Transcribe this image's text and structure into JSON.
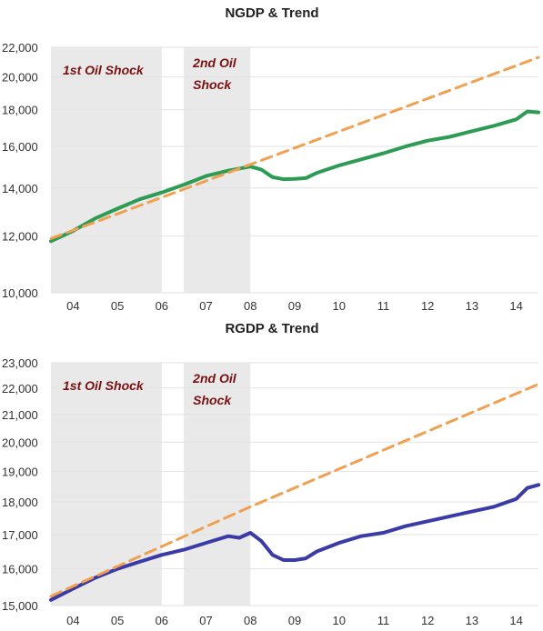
{
  "chart_data": [
    {
      "type": "line",
      "title": "NGDP & Trend",
      "y_scale": "log",
      "ylim": [
        10000,
        22000
      ],
      "yticks": [
        10000,
        12000,
        14000,
        16000,
        18000,
        20000,
        22000
      ],
      "ytick_labels": [
        "10,000",
        "12,000",
        "14,000",
        "16,000",
        "18,000",
        "20,000",
        "22,000"
      ],
      "xlim": [
        2003.5,
        2014.5
      ],
      "xticks": [
        2004,
        2005,
        2006,
        2007,
        2008,
        2009,
        2010,
        2011,
        2012,
        2013,
        2014
      ],
      "xtick_labels": [
        "04",
        "05",
        "06",
        "07",
        "08",
        "09",
        "10",
        "11",
        "12",
        "13",
        "14"
      ],
      "shaded_regions": [
        {
          "x0": 2003.5,
          "x1": 2006.0,
          "label_lines": [
            "1st Oil Shock"
          ]
        },
        {
          "x0": 2006.5,
          "x1": 2008.0,
          "label_lines": [
            "2nd Oil",
            "Shock"
          ]
        }
      ],
      "series": [
        {
          "style": "solid",
          "color": "#2e9b55",
          "x": [
            2003.5,
            2004.0,
            2004.5,
            2005.0,
            2005.5,
            2006.0,
            2006.5,
            2007.0,
            2007.5,
            2008.0,
            2008.25,
            2008.5,
            2008.75,
            2009.0,
            2009.25,
            2009.5,
            2010.0,
            2010.5,
            2011.0,
            2011.5,
            2012.0,
            2012.5,
            2013.0,
            2013.5,
            2014.0,
            2014.25,
            2014.5
          ],
          "values": [
            11800,
            12200,
            12700,
            13100,
            13500,
            13800,
            14150,
            14550,
            14800,
            15000,
            14850,
            14500,
            14400,
            14420,
            14450,
            14700,
            15050,
            15350,
            15650,
            16000,
            16300,
            16500,
            16800,
            17100,
            17450,
            17900,
            17850
          ]
        },
        {
          "style": "dashed",
          "color": "#f0a050",
          "x": [
            2003.5,
            2014.5
          ],
          "values": [
            11900,
            21300
          ]
        }
      ]
    },
    {
      "type": "line",
      "title": "RGDP & Trend",
      "y_scale": "log",
      "ylim": [
        15000,
        23000
      ],
      "yticks": [
        15000,
        16000,
        17000,
        18000,
        19000,
        20000,
        21000,
        22000,
        23000
      ],
      "ytick_labels": [
        "15,000",
        "16,000",
        "17,000",
        "18,000",
        "19,000",
        "20,000",
        "21,000",
        "22,000",
        "23,000"
      ],
      "xlim": [
        2003.5,
        2014.5
      ],
      "xticks": [
        2004,
        2005,
        2006,
        2007,
        2008,
        2009,
        2010,
        2011,
        2012,
        2013,
        2014
      ],
      "xtick_labels": [
        "04",
        "05",
        "06",
        "07",
        "08",
        "09",
        "10",
        "11",
        "12",
        "13",
        "14"
      ],
      "shaded_regions": [
        {
          "x0": 2003.5,
          "x1": 2006.0,
          "label_lines": [
            "1st Oil Shock"
          ]
        },
        {
          "x0": 2006.5,
          "x1": 2008.0,
          "label_lines": [
            "2nd Oil",
            "Shock"
          ]
        }
      ],
      "series": [
        {
          "style": "solid",
          "color": "#3b3ba8",
          "x": [
            2003.5,
            2004.0,
            2004.5,
            2005.0,
            2005.5,
            2006.0,
            2006.5,
            2007.0,
            2007.5,
            2007.75,
            2008.0,
            2008.25,
            2008.5,
            2008.75,
            2009.0,
            2009.25,
            2009.5,
            2010.0,
            2010.5,
            2011.0,
            2011.5,
            2012.0,
            2012.5,
            2013.0,
            2013.5,
            2014.0,
            2014.25,
            2014.5
          ],
          "values": [
            15150,
            15450,
            15750,
            16000,
            16200,
            16400,
            16550,
            16750,
            16950,
            16900,
            17050,
            16800,
            16400,
            16250,
            16250,
            16300,
            16500,
            16750,
            16950,
            17050,
            17250,
            17400,
            17550,
            17700,
            17850,
            18100,
            18450,
            18550
          ]
        },
        {
          "style": "dashed",
          "color": "#f0a050",
          "x": [
            2003.5,
            2008.0,
            2014.5
          ],
          "values": [
            15250,
            17850,
            22150
          ]
        }
      ]
    }
  ]
}
